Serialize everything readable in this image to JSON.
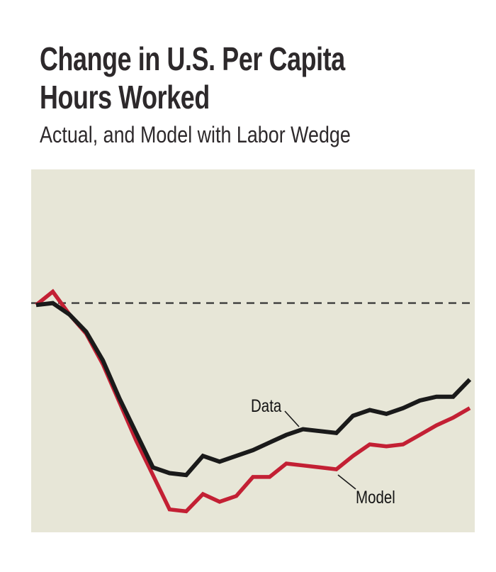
{
  "title": {
    "line1": "Change in U.S. Per Capita",
    "line2": "Hours Worked",
    "subtitle": "Actual, and Model with Labor Wedge"
  },
  "chart_data": {
    "type": "line",
    "title": "Change in U.S. Per Capita Hours Worked",
    "subtitle": "Actual, and Model with Labor Wedge",
    "xlabel": "",
    "ylabel": "",
    "x": [
      0,
      1,
      2,
      3,
      4,
      5,
      6,
      7,
      8,
      9,
      10,
      11,
      12,
      13,
      14,
      15,
      16,
      17,
      18,
      19,
      20,
      21,
      22,
      23,
      24,
      25,
      26
    ],
    "ylim": [
      -12,
      7
    ],
    "zero_line": 0,
    "grid": false,
    "axis_tick_labels_visible": false,
    "legend_position": "inline-annotations",
    "plot_background": "#e7e6d7",
    "zero_line_color": "#3c3c3c",
    "series": [
      {
        "name": "Data",
        "color": "#1a1a1a",
        "values": [
          -0.1,
          0.0,
          -0.6,
          -1.5,
          -3.0,
          -5.0,
          -6.8,
          -8.6,
          -8.9,
          -9.0,
          -8.0,
          -8.3,
          -8.0,
          -7.7,
          -7.3,
          -6.9,
          -6.6,
          -6.7,
          -6.8,
          -5.9,
          -5.6,
          -5.8,
          -5.5,
          -5.1,
          -4.9,
          -4.9,
          -4.0
        ]
      },
      {
        "name": "Model",
        "color": "#c32034",
        "values": [
          -0.1,
          0.6,
          -0.6,
          -1.6,
          -3.2,
          -5.2,
          -7.2,
          -9.0,
          -10.8,
          -10.9,
          -10.0,
          -10.4,
          -10.1,
          -9.1,
          -9.1,
          -8.4,
          -8.5,
          -8.6,
          -8.7,
          -8.0,
          -7.4,
          -7.5,
          -7.4,
          -6.9,
          -6.4,
          -6.0,
          -5.5
        ]
      }
    ]
  }
}
